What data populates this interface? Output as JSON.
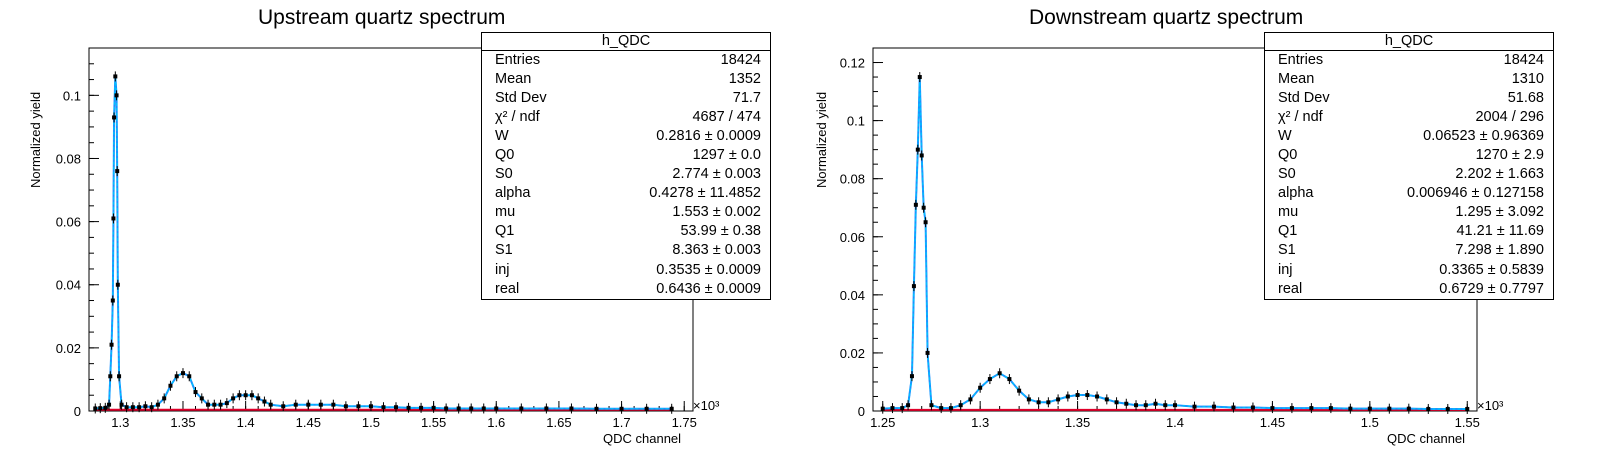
{
  "colors": {
    "fit_blue": "#1E90FF",
    "fit_cyan": "#00BFFF",
    "comp_red": "#E0002A",
    "comp_magenta": "#C000C0",
    "data": "#000000"
  },
  "chart_data": [
    {
      "type": "scatter",
      "title": "Upstream quartz spectrum",
      "xlabel": "QDC channel",
      "ylabel": "Normalized yield",
      "x_multiplier": "×10³",
      "xlim": [
        1.275,
        1.757
      ],
      "ylim": [
        0,
        0.115
      ],
      "x_ticks": [
        "1.3",
        "1.35",
        "1.4",
        "1.45",
        "1.5",
        "1.55",
        "1.6",
        "1.65",
        "1.7",
        "1.75"
      ],
      "y_ticks": [
        "0",
        "0.02",
        "0.04",
        "0.06",
        "0.08",
        "0.1"
      ],
      "stats": {
        "name": "h_QDC",
        "rows": [
          {
            "label": "Entries",
            "value": "18424"
          },
          {
            "label": "Mean",
            "value": "1352"
          },
          {
            "label": "Std Dev",
            "value": "71.7"
          },
          {
            "label": "χ² / ndf",
            "value": "4687 / 474"
          },
          {
            "label": "W",
            "value": "0.2816 ± 0.0009"
          },
          {
            "label": "Q0",
            "value": "1297 ± 0.0"
          },
          {
            "label": "S0",
            "value": "2.774 ± 0.003"
          },
          {
            "label": "alpha",
            "value": "0.4278 ± 11.4852"
          },
          {
            "label": "mu",
            "value": "1.553 ± 0.002"
          },
          {
            "label": "Q1",
            "value": "53.99 ± 0.38"
          },
          {
            "label": "S1",
            "value": "8.363 ± 0.003"
          },
          {
            "label": "inj",
            "value": "0.3535 ± 0.0009"
          },
          {
            "label": "real",
            "value": "0.6436 ± 0.0009"
          }
        ]
      },
      "series": [
        {
          "values": [
            [
              1.28,
              0.0008
            ],
            [
              1.284,
              0.0009
            ],
            [
              1.288,
              0.001
            ],
            [
              1.291,
              0.002
            ],
            [
              1.292,
              0.011
            ],
            [
              1.293,
              0.021
            ],
            [
              1.294,
              0.035
            ],
            [
              1.2945,
              0.061
            ],
            [
              1.295,
              0.093
            ],
            [
              1.296,
              0.106
            ],
            [
              1.297,
              0.1
            ],
            [
              1.2975,
              0.076
            ],
            [
              1.298,
              0.04
            ],
            [
              1.299,
              0.011
            ],
            [
              1.301,
              0.002
            ],
            [
              1.305,
              0.0012
            ],
            [
              1.31,
              0.0012
            ],
            [
              1.315,
              0.0012
            ],
            [
              1.32,
              0.0015
            ],
            [
              1.325,
              0.0012
            ],
            [
              1.33,
              0.002
            ],
            [
              1.335,
              0.004
            ],
            [
              1.34,
              0.008
            ],
            [
              1.345,
              0.011
            ],
            [
              1.35,
              0.012
            ],
            [
              1.355,
              0.011
            ],
            [
              1.36,
              0.006
            ],
            [
              1.365,
              0.004
            ],
            [
              1.37,
              0.002
            ],
            [
              1.375,
              0.002
            ],
            [
              1.38,
              0.002
            ],
            [
              1.385,
              0.0025
            ],
            [
              1.39,
              0.004
            ],
            [
              1.395,
              0.005
            ],
            [
              1.4,
              0.005
            ],
            [
              1.405,
              0.005
            ],
            [
              1.41,
              0.004
            ],
            [
              1.415,
              0.003
            ],
            [
              1.42,
              0.002
            ],
            [
              1.43,
              0.0015
            ],
            [
              1.44,
              0.002
            ],
            [
              1.45,
              0.002
            ],
            [
              1.46,
              0.002
            ],
            [
              1.47,
              0.002
            ],
            [
              1.48,
              0.0015
            ],
            [
              1.49,
              0.0015
            ],
            [
              1.5,
              0.0015
            ],
            [
              1.51,
              0.0012
            ],
            [
              1.52,
              0.0012
            ],
            [
              1.53,
              0.001
            ],
            [
              1.54,
              0.001
            ],
            [
              1.55,
              0.001
            ],
            [
              1.56,
              0.0008
            ],
            [
              1.57,
              0.0008
            ],
            [
              1.58,
              0.0008
            ],
            [
              1.59,
              0.0008
            ],
            [
              1.6,
              0.0008
            ],
            [
              1.62,
              0.0008
            ],
            [
              1.64,
              0.0008
            ],
            [
              1.66,
              0.0008
            ],
            [
              1.68,
              0.0007
            ],
            [
              1.7,
              0.0007
            ],
            [
              1.72,
              0.0007
            ],
            [
              1.74,
              0.0007
            ]
          ]
        }
      ]
    },
    {
      "type": "scatter",
      "title": "Downstream quartz spectrum",
      "xlabel": "QDC channel",
      "ylabel": "Normalized yield",
      "x_multiplier": "×10³",
      "xlim": [
        1.245,
        1.555
      ],
      "ylim": [
        0,
        0.125
      ],
      "x_ticks": [
        "1.25",
        "1.3",
        "1.35",
        "1.4",
        "1.45",
        "1.5",
        "1.55"
      ],
      "y_ticks": [
        "0",
        "0.02",
        "0.04",
        "0.06",
        "0.08",
        "0.1",
        "0.12"
      ],
      "stats": {
        "name": "h_QDC",
        "rows": [
          {
            "label": "Entries",
            "value": "18424"
          },
          {
            "label": "Mean",
            "value": "1310"
          },
          {
            "label": "Std Dev",
            "value": "51.68"
          },
          {
            "label": "χ² / ndf",
            "value": "2004 / 296"
          },
          {
            "label": "W",
            "value": "0.06523 ± 0.96369"
          },
          {
            "label": "Q0",
            "value": "1270 ± 2.9"
          },
          {
            "label": "S0",
            "value": "2.202 ± 1.663"
          },
          {
            "label": "alpha",
            "value": "0.006946 ± 0.127158"
          },
          {
            "label": "mu",
            "value": "1.295 ± 3.092"
          },
          {
            "label": "Q1",
            "value": "41.21 ± 11.69"
          },
          {
            "label": "S1",
            "value": "7.298 ± 1.890"
          },
          {
            "label": "inj",
            "value": "0.3365 ± 0.5839"
          },
          {
            "label": "real",
            "value": "0.6729 ± 0.7797"
          }
        ]
      },
      "series": [
        {
          "values": [
            [
              1.25,
              0.0008
            ],
            [
              1.255,
              0.001
            ],
            [
              1.26,
              0.001
            ],
            [
              1.263,
              0.002
            ],
            [
              1.265,
              0.012
            ],
            [
              1.266,
              0.043
            ],
            [
              1.267,
              0.071
            ],
            [
              1.268,
              0.09
            ],
            [
              1.269,
              0.115
            ],
            [
              1.27,
              0.088
            ],
            [
              1.271,
              0.07
            ],
            [
              1.272,
              0.065
            ],
            [
              1.273,
              0.02
            ],
            [
              1.275,
              0.002
            ],
            [
              1.28,
              0.001
            ],
            [
              1.285,
              0.001
            ],
            [
              1.29,
              0.002
            ],
            [
              1.295,
              0.004
            ],
            [
              1.3,
              0.008
            ],
            [
              1.305,
              0.011
            ],
            [
              1.31,
              0.013
            ],
            [
              1.315,
              0.011
            ],
            [
              1.32,
              0.007
            ],
            [
              1.325,
              0.004
            ],
            [
              1.33,
              0.003
            ],
            [
              1.335,
              0.003
            ],
            [
              1.34,
              0.004
            ],
            [
              1.345,
              0.005
            ],
            [
              1.35,
              0.0055
            ],
            [
              1.355,
              0.0055
            ],
            [
              1.36,
              0.005
            ],
            [
              1.365,
              0.004
            ],
            [
              1.37,
              0.003
            ],
            [
              1.375,
              0.0025
            ],
            [
              1.38,
              0.002
            ],
            [
              1.385,
              0.002
            ],
            [
              1.39,
              0.0025
            ],
            [
              1.395,
              0.002
            ],
            [
              1.4,
              0.002
            ],
            [
              1.41,
              0.0015
            ],
            [
              1.42,
              0.0015
            ],
            [
              1.43,
              0.0012
            ],
            [
              1.44,
              0.0012
            ],
            [
              1.45,
              0.001
            ],
            [
              1.46,
              0.001
            ],
            [
              1.47,
              0.001
            ],
            [
              1.48,
              0.001
            ],
            [
              1.49,
              0.0008
            ],
            [
              1.5,
              0.0008
            ],
            [
              1.51,
              0.0008
            ],
            [
              1.52,
              0.0008
            ],
            [
              1.53,
              0.0007
            ],
            [
              1.54,
              0.0007
            ],
            [
              1.55,
              0.0007
            ]
          ]
        }
      ]
    }
  ]
}
